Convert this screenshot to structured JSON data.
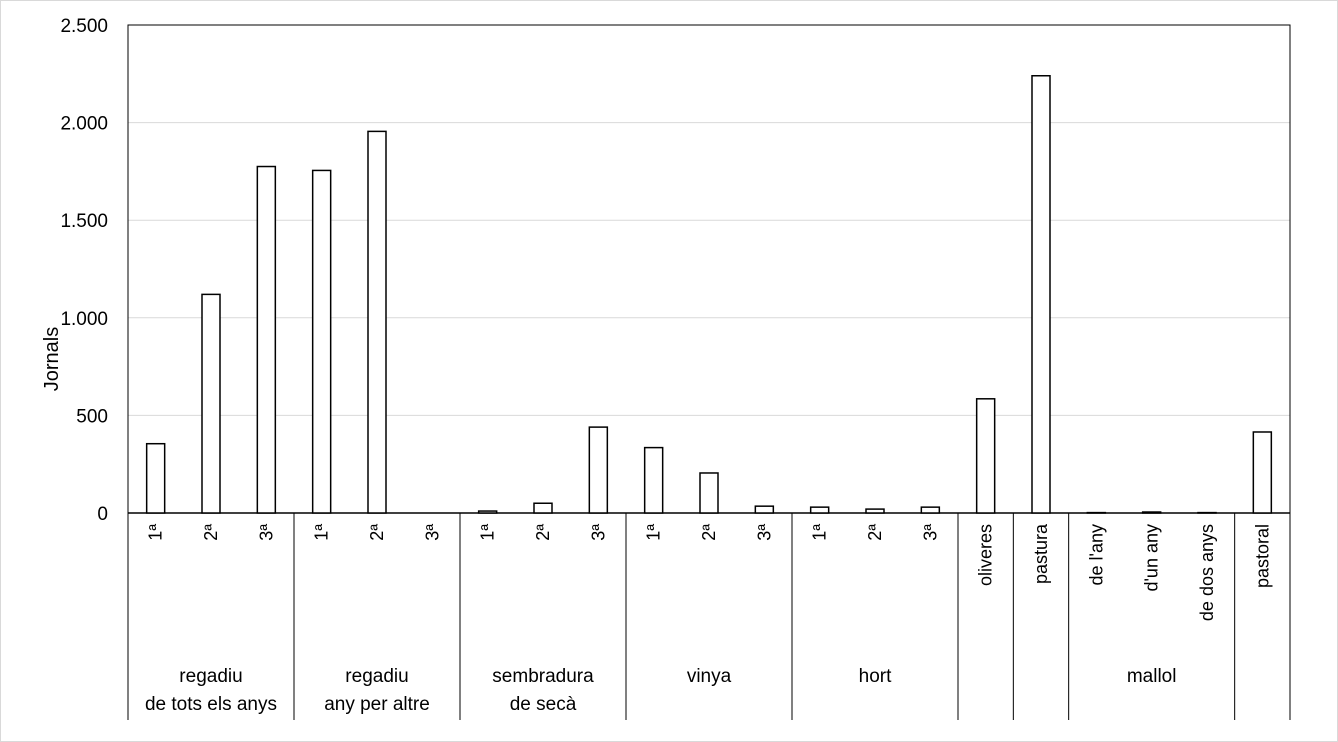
{
  "chart_data": {
    "type": "bar",
    "title": "",
    "ylabel": "Jornals",
    "xlabel": "",
    "ylim": [
      0,
      2500
    ],
    "y_ticks": [
      0,
      500,
      1000,
      1500,
      2000,
      2500
    ],
    "y_tick_labels": [
      "0",
      "500",
      "1.000",
      "1.500",
      "2.000",
      "2.500"
    ],
    "grid": true,
    "legend": "none",
    "colors": {
      "bar_fill": "#ffffff",
      "bar_stroke": "#000000",
      "grid": "#d9d9d9"
    },
    "groups": [
      {
        "label_lines": [
          "regadiu",
          "de tots els anys"
        ],
        "categories": [
          "1ª",
          "2ª",
          "3ª"
        ],
        "values": [
          355,
          1120,
          1775
        ]
      },
      {
        "label_lines": [
          "regadiu",
          "any per altre"
        ],
        "categories": [
          "1ª",
          "2ª",
          "3ª"
        ],
        "values": [
          1755,
          1955,
          0
        ]
      },
      {
        "label_lines": [
          "sembradura",
          "de secà"
        ],
        "categories": [
          "1ª",
          "2ª",
          "3ª"
        ],
        "values": [
          10,
          50,
          440
        ]
      },
      {
        "label_lines": [
          "vinya"
        ],
        "categories": [
          "1ª",
          "2ª",
          "3ª"
        ],
        "values": [
          335,
          205,
          35
        ]
      },
      {
        "label_lines": [
          "hort"
        ],
        "categories": [
          "1ª",
          "2ª",
          "3ª"
        ],
        "values": [
          30,
          20,
          30
        ]
      },
      {
        "label_lines": [],
        "categories": [
          "oliveres"
        ],
        "values": [
          585
        ]
      },
      {
        "label_lines": [],
        "categories": [
          "pastura"
        ],
        "values": [
          2240
        ]
      },
      {
        "label_lines": [
          "mallol"
        ],
        "categories": [
          "de l'any",
          "d'un any",
          "de dos anys"
        ],
        "values": [
          2,
          5,
          2
        ]
      },
      {
        "label_lines": [],
        "categories": [
          "pastoral"
        ],
        "values": [
          415
        ]
      }
    ]
  }
}
